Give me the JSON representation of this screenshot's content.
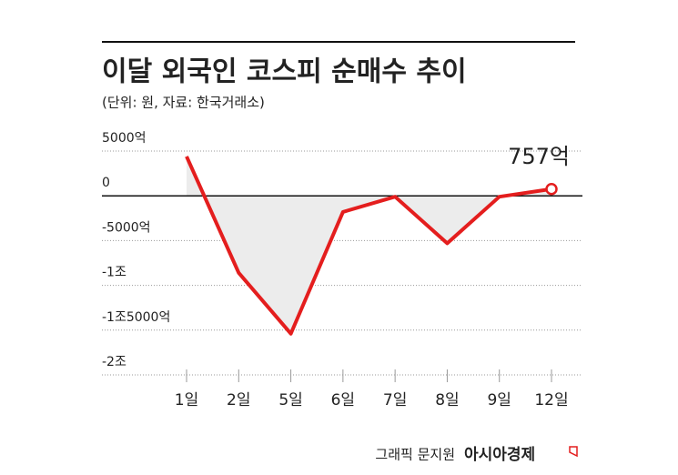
{
  "chart_data": {
    "type": "line",
    "title": "이달 외국인 코스피 순매수 추이",
    "subtitle": "(단위: 원, 자료: 한국거래소)",
    "categories": [
      "1일",
      "2일",
      "5일",
      "6일",
      "7일",
      "8일",
      "9일",
      "12일"
    ],
    "values": [
      4400,
      -8600,
      -15400,
      -1800,
      -100,
      -5300,
      -100,
      757
    ],
    "value_labels": [
      null,
      null,
      null,
      null,
      null,
      null,
      null,
      "757억"
    ],
    "color": "#e41e1e",
    "area_color": "#ececec",
    "ylim": [
      -20000,
      5000
    ],
    "yticks": [
      {
        "value": 5000,
        "label": "5000억"
      },
      0,
      {
        "value": -5000,
        "label": "-5000억"
      },
      {
        "value": -10000,
        "label": "-1조"
      },
      {
        "value": -15000,
        "label": "-1조5000억"
      },
      {
        "value": -20000,
        "label": "-2조"
      }
    ],
    "grid": true,
    "credit": "그래픽 문지원",
    "publisher": "아시아경제"
  }
}
